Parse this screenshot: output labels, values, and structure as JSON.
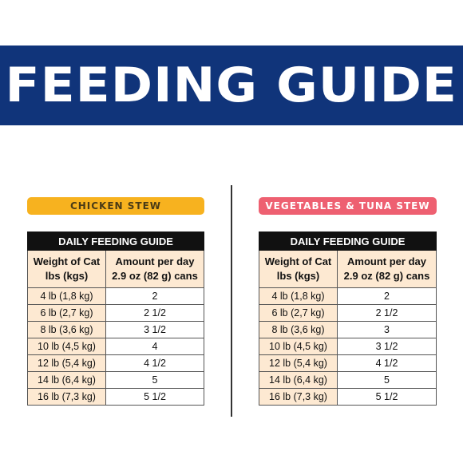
{
  "banner": {
    "title": "FEEDING GUIDE"
  },
  "colors": {
    "banner": "#10347a",
    "chicken_pill": "#f7b21f",
    "tuna_pill": "#ee6071",
    "row_tint": "#fde9d2"
  },
  "guides": [
    {
      "label": "CHICKEN STEW",
      "table_title": "DAILY FEEDING GUIDE",
      "col1_header": [
        "Weight of Cat",
        "lbs (kgs)"
      ],
      "col2_header": [
        "Amount per day",
        "2.9 oz (82 g) cans"
      ],
      "rows": [
        [
          "4 lb (1,8 kg)",
          "2"
        ],
        [
          "6 lb (2,7 kg)",
          "2 1/2"
        ],
        [
          "8 lb (3,6 kg)",
          "3 1/2"
        ],
        [
          "10 lb (4,5 kg)",
          "4"
        ],
        [
          "12 lb (5,4 kg)",
          "4 1/2"
        ],
        [
          "14 lb (6,4 kg)",
          "5"
        ],
        [
          "16 lb (7,3 kg)",
          "5 1/2"
        ]
      ]
    },
    {
      "label": "VEGETABLES & TUNA STEW",
      "table_title": "DAILY FEEDING GUIDE",
      "col1_header": [
        "Weight of Cat",
        "lbs (kgs)"
      ],
      "col2_header": [
        "Amount per day",
        "2.9 oz (82 g) cans"
      ],
      "rows": [
        [
          "4 lb (1,8 kg)",
          "2"
        ],
        [
          "6 lb (2,7 kg)",
          "2 1/2"
        ],
        [
          "8 lb (3,6 kg)",
          "3"
        ],
        [
          "10 lb (4,5 kg)",
          "3 1/2"
        ],
        [
          "12 lb (5,4 kg)",
          "4 1/2"
        ],
        [
          "14 lb (6,4 kg)",
          "5"
        ],
        [
          "16 lb (7,3 kg)",
          "5 1/2"
        ]
      ]
    }
  ]
}
